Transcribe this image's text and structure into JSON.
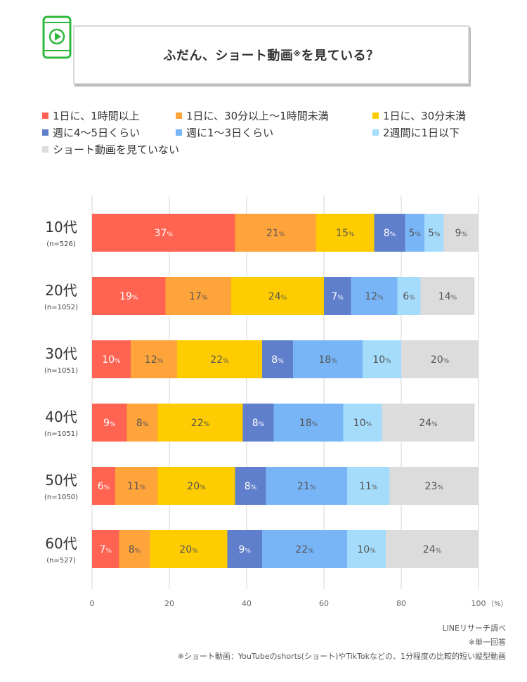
{
  "title": "ふだん、ショート動画",
  "title_mark": "※",
  "title_suffix": "を見ている？",
  "colors": {
    "accent_green": "#2eb93e",
    "series": [
      "#ff6352",
      "#ffa43b",
      "#fecc00",
      "#5f7ecb",
      "#78b5f7",
      "#a5dcfb",
      "#dcdcdc"
    ]
  },
  "icon": "smartphone-play-icon",
  "chart_data": {
    "type": "bar",
    "orientation": "horizontal",
    "stacked": true,
    "categories": [
      "10代",
      "20代",
      "30代",
      "40代",
      "50代",
      "60代"
    ],
    "sample_sizes": [
      "(n=526)",
      "(n=1052)",
      "(n=1051)",
      "(n=1051)",
      "(n=1050)",
      "(n=527)"
    ],
    "series": [
      {
        "name": "1日に、1時間以上",
        "color": "#ff6352",
        "values": [
          37,
          19,
          10,
          9,
          6,
          7
        ]
      },
      {
        "name": "1日に、30分以上〜1時間未満",
        "color": "#ffa43b",
        "values": [
          21,
          17,
          12,
          8,
          11,
          8
        ]
      },
      {
        "name": "1日に、30分未満",
        "color": "#fecc00",
        "values": [
          15,
          24,
          22,
          22,
          20,
          20
        ]
      },
      {
        "name": "週に4〜5日くらい",
        "color": "#5f7ecb",
        "values": [
          8,
          7,
          8,
          8,
          8,
          9
        ]
      },
      {
        "name": "週に1〜3日くらい",
        "color": "#78b5f7",
        "values": [
          5,
          12,
          18,
          18,
          21,
          22
        ]
      },
      {
        "name": "2週間に1日以下",
        "color": "#a5dcfb",
        "values": [
          5,
          6,
          10,
          10,
          11,
          10
        ]
      },
      {
        "name": "ショート動画を見ていない",
        "color": "#dcdcdc",
        "values": [
          9,
          14,
          20,
          24,
          23,
          24
        ]
      }
    ],
    "percent_suffix": "%",
    "xlim": [
      0,
      100
    ],
    "xticks": [
      0,
      20,
      40,
      60,
      80,
      100
    ],
    "x_unit": "（%）",
    "grid": true,
    "legend_position": "top"
  },
  "source": {
    "line1": "LINEリサーチ調べ",
    "line2": "※単一回答",
    "line3": "※ショート動画：YouTubeのshorts(ショート)やTikTokなどの、1分程度の比較的短い縦型動画"
  }
}
